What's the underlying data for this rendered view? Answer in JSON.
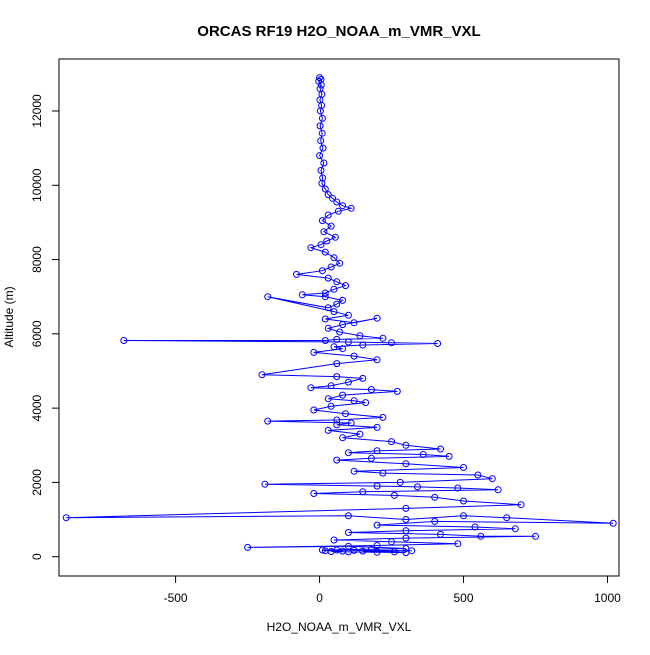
{
  "chart_data": {
    "type": "scatter",
    "title": "ORCAS RF19 H2O_NOAA_m_VMR_VXL",
    "xlabel": "H2O_NOAA_m_VMR_VXL",
    "ylabel": "Altitude (m)",
    "xlim": [
      -905,
      1040
    ],
    "ylim": [
      -520,
      13400
    ],
    "xticks": [
      -500,
      0,
      500,
      1000
    ],
    "yticks": [
      0,
      2000,
      4000,
      6000,
      8000,
      10000,
      12000
    ],
    "grid": false,
    "legend": "none",
    "color": "#0000ff",
    "marker": "open-circle",
    "connected": true,
    "series": [
      {
        "x": [
          0,
          5,
          -3,
          6,
          2,
          8,
          1,
          7,
          3,
          10,
          2,
          9,
          4,
          12,
          0,
          15,
          5,
          11,
          8,
          20,
          30,
          45,
          60,
          80,
          110,
          65,
          30,
          10,
          40,
          15,
          55,
          25,
          5,
          -30,
          20,
          50,
          70,
          40,
          10,
          -80,
          30,
          60,
          90,
          50,
          20,
          -60,
          20,
          80,
          60,
          30,
          -180,
          50,
          100,
          20,
          120,
          200,
          80,
          30,
          70,
          140,
          220,
          60,
          20,
          -680,
          100,
          250,
          410,
          150,
          50,
          80,
          -20,
          120,
          200,
          60,
          -200,
          60,
          150,
          100,
          40,
          -30,
          180,
          270,
          80,
          30,
          120,
          160,
          40,
          -20,
          90,
          220,
          60,
          -180,
          110,
          60,
          200,
          30,
          140,
          80,
          250,
          300,
          420,
          200,
          100,
          360,
          450,
          180,
          60,
          300,
          500,
          120,
          220,
          550,
          600,
          280,
          -190,
          200,
          340,
          480,
          620,
          150,
          -20,
          260,
          400,
          500,
          700,
          300,
          -880,
          100,
          300,
          500,
          650,
          1020,
          400,
          200,
          540,
          680,
          300,
          100,
          420,
          560,
          750,
          300,
          50,
          250,
          480,
          200,
          -250,
          100,
          300,
          180,
          10,
          20,
          80,
          40,
          100,
          200,
          300,
          260,
          150,
          320,
          120,
          60
        ],
        "y": [
          12900,
          12850,
          12800,
          12700,
          12600,
          12450,
          12300,
          12150,
          12000,
          11800,
          11600,
          11400,
          11200,
          11000,
          10800,
          10600,
          10400,
          10200,
          10050,
          9900,
          9750,
          9650,
          9550,
          9450,
          9380,
          9300,
          9200,
          9050,
          8900,
          8750,
          8600,
          8500,
          8400,
          8320,
          8200,
          8050,
          7900,
          7800,
          7700,
          7600,
          7500,
          7400,
          7300,
          7200,
          7100,
          7050,
          7000,
          6900,
          6800,
          6700,
          7000,
          6600,
          6500,
          6400,
          6300,
          6420,
          6250,
          6150,
          6050,
          5950,
          5880,
          5850,
          5820,
          5820,
          5780,
          5760,
          5740,
          5700,
          5650,
          5600,
          5500,
          5400,
          5300,
          5200,
          4900,
          4850,
          4800,
          4700,
          4600,
          4550,
          4500,
          4450,
          4350,
          4250,
          4200,
          4150,
          4050,
          3950,
          3850,
          3750,
          3680,
          3650,
          3600,
          3550,
          3480,
          3400,
          3300,
          3200,
          3100,
          3000,
          2900,
          2850,
          2800,
          2750,
          2700,
          2650,
          2600,
          2500,
          2400,
          2300,
          2250,
          2200,
          2100,
          2000,
          1950,
          1900,
          1880,
          1850,
          1800,
          1750,
          1700,
          1650,
          1600,
          1500,
          1400,
          1300,
          1050,
          1100,
          1000,
          1100,
          1050,
          900,
          950,
          850,
          800,
          750,
          700,
          650,
          600,
          550,
          550,
          500,
          450,
          400,
          350,
          300,
          250,
          280,
          220,
          200,
          180,
          160,
          150,
          140,
          130,
          120,
          110,
          130,
          150,
          160,
          170,
          180
        ]
      }
    ]
  }
}
